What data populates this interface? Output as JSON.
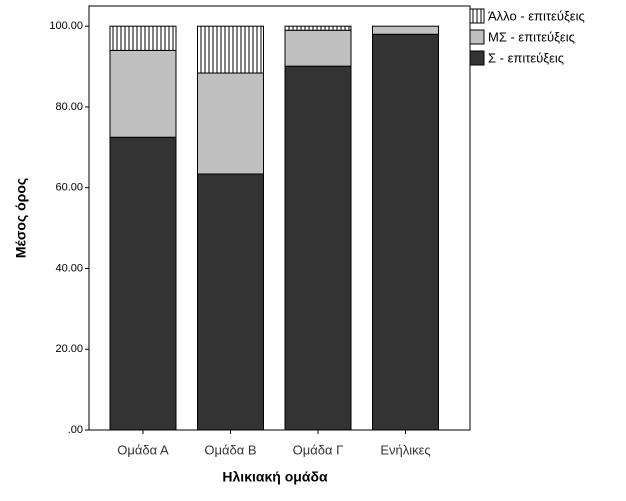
{
  "chart_data": {
    "type": "stacked-bar",
    "x_label": "Ηλικιακή ομάδα",
    "y_label": "Μέσος όρος",
    "categories": [
      "Ομάδα Α",
      "Ομάδα Β",
      "Ομάδα Γ",
      "Ενήλικες"
    ],
    "series": [
      {
        "name": "Σ - επιτεύξεις",
        "color": "#333333",
        "values": [
          72.5,
          63.4,
          90.1,
          98.0
        ]
      },
      {
        "name": "ΜΣ - επιτεύξεις",
        "color": "#c0c0c0",
        "values": [
          21.5,
          25.0,
          8.9,
          2.0
        ]
      },
      {
        "name": "Άλλο - επιτεύξεις",
        "color": "#ffffff",
        "hatch": "vertical",
        "values": [
          6.0,
          11.6,
          1.0,
          0.0
        ]
      }
    ],
    "ylim": [
      0,
      105
    ],
    "yticks": [
      {
        "value": 0,
        "label": ".00"
      },
      {
        "value": 20,
        "label": "20.00"
      },
      {
        "value": 40,
        "label": "40.00"
      },
      {
        "value": 60,
        "label": "60.00"
      },
      {
        "value": 80,
        "label": "80.00"
      },
      {
        "value": 100,
        "label": "100.00"
      }
    ],
    "legend": "top-right"
  }
}
